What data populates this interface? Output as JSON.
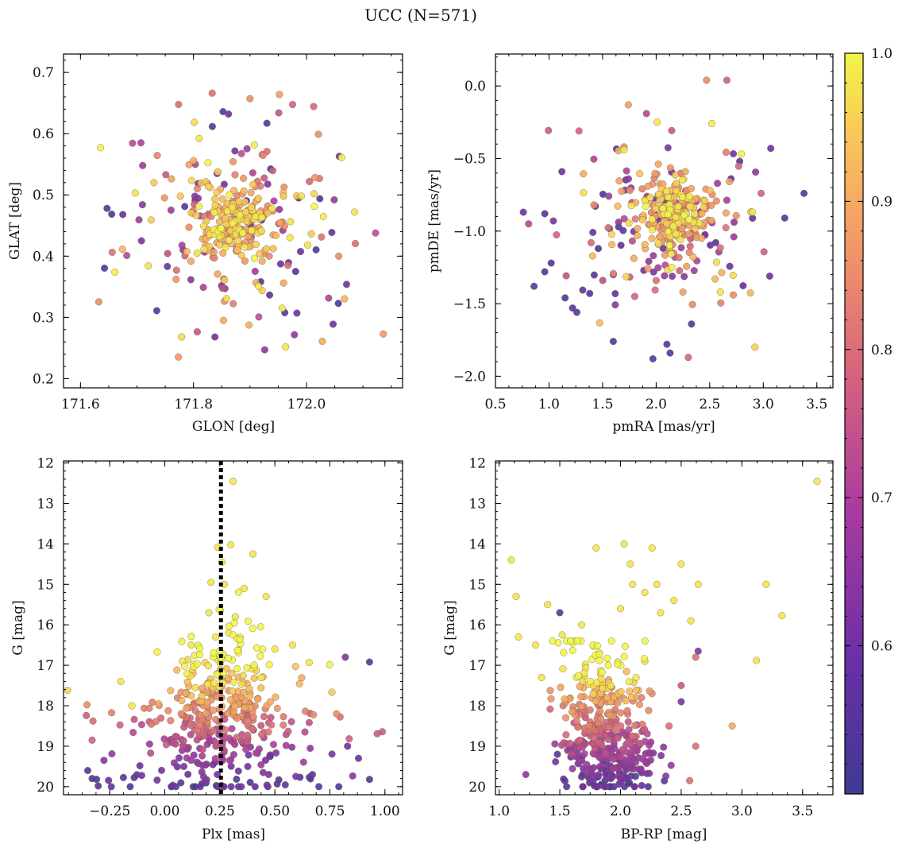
{
  "figure": {
    "title": "UCC (N=571)"
  },
  "colors": {
    "background": "#ffffff",
    "axis": "#000000",
    "colormap": "plasma",
    "vline": "#000000"
  },
  "colorbar": {
    "range": [
      0.5,
      1.0
    ],
    "ticks": [
      0.6,
      0.7,
      0.8,
      0.9,
      1.0
    ],
    "tick_labels": [
      "0.6",
      "0.7",
      "0.8",
      "0.9",
      "1.0"
    ]
  },
  "chart_data": [
    {
      "type": "scatter",
      "xlabel": "GLON [deg]",
      "ylabel": "GLAT [deg]",
      "xlim": [
        171.57,
        172.17
      ],
      "ylim": [
        0.185,
        0.73
      ],
      "xticks": [
        171.6,
        171.8,
        172.0
      ],
      "xtick_labels": [
        "171.6",
        "171.8",
        "172.0"
      ],
      "yticks": [
        0.2,
        0.3,
        0.4,
        0.5,
        0.6,
        0.7
      ],
      "ytick_labels": [
        "0.2",
        "0.3",
        "0.4",
        "0.5",
        "0.6",
        "0.7"
      ],
      "points": [
        [
          171.647,
          0.478,
          0.55
        ],
        [
          171.675,
          0.468,
          0.58
        ],
        [
          171.708,
          0.425,
          0.62
        ],
        [
          171.682,
          0.401,
          0.72
        ],
        [
          171.707,
          0.585,
          0.7
        ],
        [
          171.735,
          0.311,
          0.55
        ],
        [
          171.779,
          0.268,
          0.97
        ],
        [
          171.862,
          0.632,
          0.6
        ],
        [
          171.952,
          0.664,
          0.88
        ],
        [
          171.951,
          0.634,
          0.75
        ],
        [
          171.93,
          0.617,
          0.55
        ],
        [
          172.021,
          0.599,
          0.85
        ],
        [
          172.058,
          0.563,
          0.62
        ],
        [
          172.049,
          0.492,
          0.66
        ],
        [
          172.085,
          0.472,
          0.98
        ],
        [
          172.071,
          0.354,
          0.6
        ],
        [
          172.047,
          0.289,
          0.6
        ],
        [
          172.028,
          0.261,
          0.9
        ],
        [
          171.926,
          0.247,
          0.65
        ],
        [
          171.983,
          0.307,
          0.6
        ],
        [
          171.963,
          0.252,
          0.98
        ],
        [
          171.838,
          0.268,
          0.6
        ],
        [
          171.77,
          0.377,
          0.8
        ],
        [
          171.72,
          0.384,
          0.98
        ],
        [
          171.697,
          0.503,
          0.98
        ],
        [
          171.725,
          0.459,
          0.95
        ],
        [
          171.792,
          0.447,
          0.85
        ],
        [
          171.951,
          0.453,
          0.75
        ],
        [
          171.991,
          0.498,
          0.98
        ],
        [
          171.81,
          0.592,
          0.98
        ],
        [
          171.855,
          0.361,
          0.95
        ],
        [
          171.915,
          0.351,
          0.98
        ],
        [
          171.83,
          0.512,
          0.95
        ],
        [
          171.905,
          0.536,
          0.7
        ],
        [
          171.967,
          0.385,
          0.8
        ],
        [
          172.002,
          0.418,
          0.98
        ],
        [
          171.853,
          0.295,
          0.9
        ],
        [
          171.957,
          0.315,
          0.98
        ],
        [
          171.8,
          0.556,
          0.9
        ],
        [
          172.057,
          0.4,
          0.85
        ],
        [
          171.93,
          0.571,
          0.8
        ],
        [
          171.751,
          0.533,
          0.75
        ],
        [
          171.73,
          0.52,
          0.95
        ]
      ],
      "cluster": {
        "center": [
          171.88,
          0.452
        ],
        "spread": [
          0.034,
          0.026
        ],
        "count": 200,
        "seed": 11,
        "cmin": 0.82,
        "cmax": 1.0
      },
      "halo": {
        "center": [
          171.88,
          0.452
        ],
        "spread": [
          0.1,
          0.085
        ],
        "count": 150,
        "seed": 23,
        "cmin": 0.52,
        "cmax": 1.0
      }
    },
    {
      "type": "scatter",
      "xlabel": "pmRA [mas/yr]",
      "ylabel": "pmDE [mas/yr]",
      "xlim": [
        0.5,
        3.65
      ],
      "ylim": [
        -2.08,
        0.22
      ],
      "xticks": [
        0.5,
        1.0,
        1.5,
        2.0,
        2.5,
        3.0,
        3.5
      ],
      "xtick_labels": [
        "0.5",
        "1.0",
        "1.5",
        "2.0",
        "2.5",
        "3.0",
        "3.5"
      ],
      "yticks": [
        -2.0,
        -1.5,
        -1.0,
        -0.5,
        0.0
      ],
      "ytick_labels": [
        "−2.0",
        "−1.5",
        "−1.0",
        "−0.5",
        "0.0"
      ],
      "points": [
        [
          0.76,
          -0.87,
          0.6
        ],
        [
          0.96,
          -0.88,
          0.55
        ],
        [
          0.86,
          -1.38,
          0.55
        ],
        [
          0.96,
          -1.28,
          0.55
        ],
        [
          1.15,
          -1.46,
          0.55
        ],
        [
          1.22,
          -1.53,
          0.55
        ],
        [
          1.26,
          -1.56,
          0.55
        ],
        [
          1.38,
          -1.43,
          0.55
        ],
        [
          1.6,
          -1.76,
          0.55
        ],
        [
          1.97,
          -1.88,
          0.55
        ],
        [
          2.13,
          -1.84,
          0.55
        ],
        [
          2.1,
          -1.78,
          0.55
        ],
        [
          2.3,
          -1.87,
          0.78
        ],
        [
          2.33,
          -1.64,
          0.55
        ],
        [
          2.47,
          0.04,
          0.85
        ],
        [
          2.66,
          0.04,
          0.78
        ],
        [
          3.07,
          -0.43,
          0.6
        ],
        [
          3.38,
          -0.74,
          0.55
        ],
        [
          3.2,
          -0.91,
          0.55
        ],
        [
          3.06,
          -1.31,
          0.6
        ],
        [
          2.98,
          -0.74,
          0.78
        ],
        [
          2.78,
          -0.52,
          0.55
        ],
        [
          1.28,
          -0.31,
          0.78
        ],
        [
          1.74,
          -0.13,
          0.88
        ],
        [
          2.01,
          -0.25,
          0.98
        ],
        [
          1.91,
          -0.19,
          0.72
        ],
        [
          1.12,
          -0.59,
          0.6
        ],
        [
          1.04,
          -0.93,
          0.62
        ],
        [
          0.81,
          -0.95,
          0.72
        ],
        [
          1.02,
          -1.22,
          0.55
        ],
        [
          2.72,
          -1.44,
          0.85
        ],
        [
          2.9,
          -0.87,
          0.98
        ],
        [
          2.55,
          -1.33,
          0.92
        ],
        [
          1.6,
          -1.3,
          0.6
        ],
        [
          1.8,
          -1.45,
          0.78
        ],
        [
          2.0,
          -1.34,
          0.8
        ],
        [
          2.25,
          -1.42,
          0.88
        ],
        [
          2.6,
          -1.42,
          0.98
        ],
        [
          1.42,
          -0.82,
          0.85
        ],
        [
          1.7,
          -0.42,
          0.85
        ]
      ],
      "cluster": {
        "center": [
          2.17,
          -0.88
        ],
        "spread": [
          0.17,
          0.13
        ],
        "count": 200,
        "seed": 37,
        "cmin": 0.82,
        "cmax": 1.0
      },
      "halo": {
        "center": [
          2.05,
          -0.95
        ],
        "spread": [
          0.42,
          0.3
        ],
        "count": 150,
        "seed": 41,
        "cmin": 0.52,
        "cmax": 1.0
      }
    },
    {
      "type": "scatter",
      "xlabel": "Plx [mas]",
      "ylabel": "G [mag]",
      "xlim": [
        -0.46,
        1.08
      ],
      "ylim": [
        20.2,
        11.95
      ],
      "xticks": [
        -0.25,
        0.0,
        0.25,
        0.5,
        0.75,
        1.0
      ],
      "xtick_labels": [
        "−0.25",
        "0.00",
        "0.25",
        "0.50",
        "0.75",
        "1.00"
      ],
      "yticks": [
        12,
        13,
        14,
        15,
        16,
        17,
        18,
        19,
        20
      ],
      "ytick_labels": [
        "12",
        "13",
        "14",
        "15",
        "16",
        "17",
        "18",
        "19",
        "20"
      ],
      "vline": 0.255,
      "points": [
        [
          0.31,
          12.45,
          0.98
        ],
        [
          0.24,
          14.08,
          0.98
        ],
        [
          0.3,
          14.02,
          0.98
        ],
        [
          0.4,
          14.25,
          0.98
        ],
        [
          0.26,
          14.45,
          0.98
        ],
        [
          0.36,
          15.1,
          0.98
        ],
        [
          0.46,
          15.3,
          0.98
        ],
        [
          0.32,
          15.8,
          0.98
        ],
        [
          0.5,
          16.6,
          0.98
        ],
        [
          0.58,
          16.5,
          0.98
        ],
        [
          0.82,
          16.8,
          0.62
        ],
        [
          0.93,
          16.92,
          0.55
        ],
        [
          0.12,
          16.5,
          0.98
        ],
        [
          0.08,
          16.9,
          0.98
        ],
        [
          -0.33,
          18.85,
          0.78
        ],
        [
          -0.35,
          19.6,
          0.55
        ],
        [
          -0.33,
          19.8,
          0.55
        ],
        [
          0.93,
          19.82,
          0.55
        ],
        [
          0.78,
          18.2,
          0.85
        ],
        [
          0.83,
          19.0,
          0.6
        ],
        [
          0.88,
          19.3,
          0.6
        ],
        [
          0.21,
          14.95,
          0.98
        ],
        [
          0.27,
          15.0,
          0.98
        ],
        [
          0.2,
          15.7,
          0.98
        ],
        [
          0.29,
          16.2,
          0.98
        ],
        [
          0.23,
          16.3,
          0.98
        ],
        [
          -0.2,
          17.4,
          0.98
        ],
        [
          -0.15,
          18.0,
          0.98
        ]
      ],
      "cluster": {
        "center": [
          0.26,
          17.9
        ],
        "spread": [
          0.13,
          0.9
        ],
        "count": 230,
        "seed": 53,
        "clampY": [
          12.8,
          20.0
        ],
        "mag_color": true
      },
      "halo": {
        "center": [
          0.28,
          18.9
        ],
        "spread": [
          0.28,
          0.9
        ],
        "count": 200,
        "seed": 59,
        "clampY": [
          16.5,
          20.0
        ],
        "mag_color": true
      }
    },
    {
      "type": "scatter",
      "xlabel": "BP-RP [mag]",
      "ylabel": "G [mag]",
      "xlim": [
        0.97,
        3.75
      ],
      "ylim": [
        20.2,
        11.95
      ],
      "xticks": [
        1.0,
        1.5,
        2.0,
        2.5,
        3.0,
        3.5
      ],
      "xtick_labels": [
        "1.0",
        "1.5",
        "2.0",
        "2.5",
        "3.0",
        "3.5"
      ],
      "yticks": [
        12,
        13,
        14,
        15,
        16,
        17,
        18,
        19,
        20
      ],
      "ytick_labels": [
        "12",
        "13",
        "14",
        "15",
        "16",
        "17",
        "18",
        "19",
        "20"
      ],
      "points": [
        [
          3.62,
          12.45,
          0.98
        ],
        [
          1.1,
          14.4,
          0.98
        ],
        [
          1.14,
          15.3,
          0.98
        ],
        [
          1.16,
          16.3,
          0.98
        ],
        [
          1.5,
          15.7,
          0.55
        ],
        [
          1.52,
          16.25,
          0.98
        ],
        [
          1.8,
          14.1,
          0.98
        ],
        [
          2.03,
          14.0,
          0.98
        ],
        [
          2.08,
          14.5,
          0.98
        ],
        [
          2.26,
          14.1,
          0.98
        ],
        [
          2.5,
          14.5,
          0.98
        ],
        [
          2.64,
          15.0,
          0.98
        ],
        [
          2.58,
          15.9,
          0.98
        ],
        [
          2.64,
          16.65,
          0.62
        ],
        [
          2.62,
          16.8,
          0.8
        ],
        [
          3.2,
          15.0,
          0.98
        ],
        [
          3.33,
          15.77,
          0.98
        ],
        [
          3.12,
          16.88,
          0.98
        ],
        [
          2.92,
          18.5,
          0.9
        ],
        [
          2.62,
          19.0,
          0.8
        ],
        [
          2.57,
          19.85,
          0.8
        ],
        [
          1.22,
          19.7,
          0.65
        ],
        [
          1.48,
          19.2,
          0.55
        ],
        [
          1.4,
          15.5,
          0.98
        ],
        [
          2.1,
          15.0,
          0.98
        ],
        [
          2.2,
          15.2,
          0.98
        ],
        [
          2.3,
          15.0,
          0.98
        ],
        [
          2.0,
          15.6,
          0.98
        ],
        [
          2.33,
          15.7,
          0.98
        ],
        [
          2.44,
          15.4,
          0.98
        ],
        [
          1.68,
          16.0,
          0.98
        ],
        [
          1.3,
          16.5,
          0.98
        ],
        [
          1.35,
          17.3,
          0.98
        ],
        [
          2.5,
          17.5,
          0.75
        ],
        [
          2.5,
          17.9,
          0.62
        ],
        [
          2.26,
          17.7,
          0.85
        ],
        [
          2.4,
          18.5,
          0.8
        ],
        [
          2.2,
          16.9,
          0.98
        ]
      ],
      "cluster": {
        "center": [
          1.85,
          18.2
        ],
        "spread": [
          0.17,
          0.85
        ],
        "count": 230,
        "seed": 71,
        "clampY": [
          16.4,
          20.0
        ],
        "mag_color": true
      },
      "halo": {
        "center": [
          1.95,
          19.3
        ],
        "spread": [
          0.2,
          0.45
        ],
        "count": 200,
        "seed": 79,
        "clampY": [
          18.0,
          20.0
        ],
        "mag_color": true
      }
    }
  ]
}
